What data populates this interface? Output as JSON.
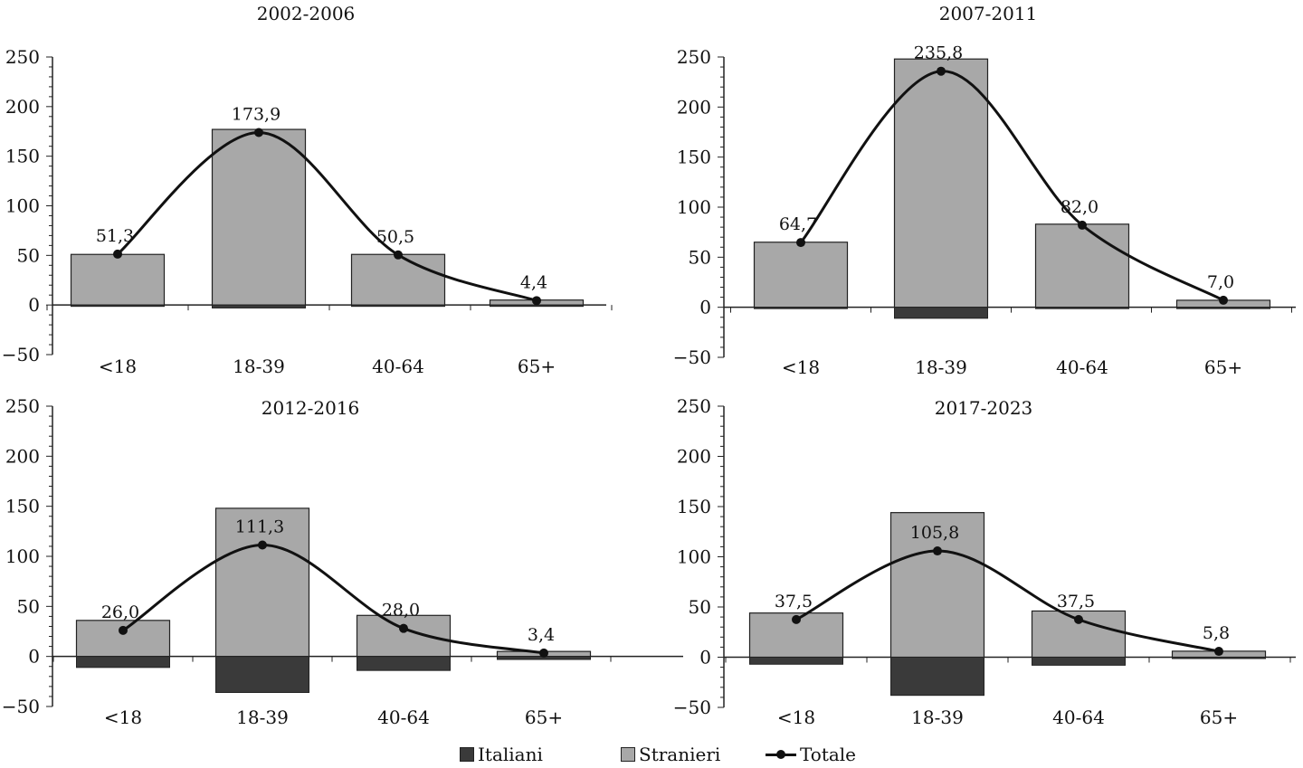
{
  "chart_data": [
    {
      "type": "bar",
      "title": "2002-2006",
      "categories": [
        "<18",
        "18-39",
        "40-64",
        "65+"
      ],
      "ylim": [
        -50,
        250
      ],
      "yticks": [
        "250",
        "200",
        "150",
        "100",
        "50",
        "0",
        "−50"
      ],
      "series": [
        {
          "name": "Italiani",
          "values": [
            0,
            -3,
            0,
            0
          ]
        },
        {
          "name": "Stranieri",
          "values": [
            51,
            177,
            51,
            5
          ]
        },
        {
          "name": "Totale",
          "values": [
            51.3,
            173.9,
            50.5,
            4.4
          ],
          "labels": [
            "51,3",
            "173,9",
            "50,5",
            "4,4"
          ]
        }
      ]
    },
    {
      "type": "bar",
      "title": "2007-2011",
      "categories": [
        "<18",
        "18-39",
        "40-64",
        "65+"
      ],
      "ylim": [
        -50,
        250
      ],
      "yticks": [
        "250",
        "200",
        "150",
        "100",
        "50",
        "0",
        "−50"
      ],
      "series": [
        {
          "name": "Italiani",
          "values": [
            0,
            -11,
            -1,
            -1
          ]
        },
        {
          "name": "Stranieri",
          "values": [
            65,
            248,
            83,
            7
          ]
        },
        {
          "name": "Totale",
          "values": [
            64.7,
            235.8,
            82.0,
            7.0
          ],
          "labels": [
            "64,7",
            "235,8",
            "82,0",
            "7,0"
          ]
        }
      ]
    },
    {
      "type": "bar",
      "title": "2012-2016",
      "categories": [
        "<18",
        "18-39",
        "40-64",
        "65+"
      ],
      "ylim": [
        -50,
        250
      ],
      "yticks": [
        "250",
        "200",
        "150",
        "100",
        "50",
        "0",
        "−50"
      ],
      "series": [
        {
          "name": "Italiani",
          "values": [
            -11,
            -36,
            -14,
            -3
          ]
        },
        {
          "name": "Stranieri",
          "values": [
            36,
            148,
            41,
            5
          ]
        },
        {
          "name": "Totale",
          "values": [
            26.0,
            111.3,
            28.0,
            3.4
          ],
          "labels": [
            "26,0",
            "111,3",
            "28,0",
            "3,4"
          ]
        }
      ]
    },
    {
      "type": "bar",
      "title": "2017-2023",
      "categories": [
        "<18",
        "18-39",
        "40-64",
        "65+"
      ],
      "ylim": [
        -50,
        250
      ],
      "yticks": [
        "250",
        "200",
        "150",
        "100",
        "50",
        "0",
        "−50"
      ],
      "series": [
        {
          "name": "Italiani",
          "values": [
            -7,
            -38,
            -8,
            0
          ]
        },
        {
          "name": "Stranieri",
          "values": [
            44,
            144,
            46,
            6
          ]
        },
        {
          "name": "Totale",
          "values": [
            37.5,
            105.8,
            37.5,
            5.8
          ],
          "labels": [
            "37,5",
            "105,8",
            "37,5",
            "5,8"
          ]
        }
      ]
    }
  ],
  "legend": {
    "items": [
      {
        "label": "Italiani",
        "color": "#3a3a3a"
      },
      {
        "label": "Stranieri",
        "color": "#a8a8a8"
      },
      {
        "label": "Totale",
        "color": "#111111"
      }
    ]
  }
}
